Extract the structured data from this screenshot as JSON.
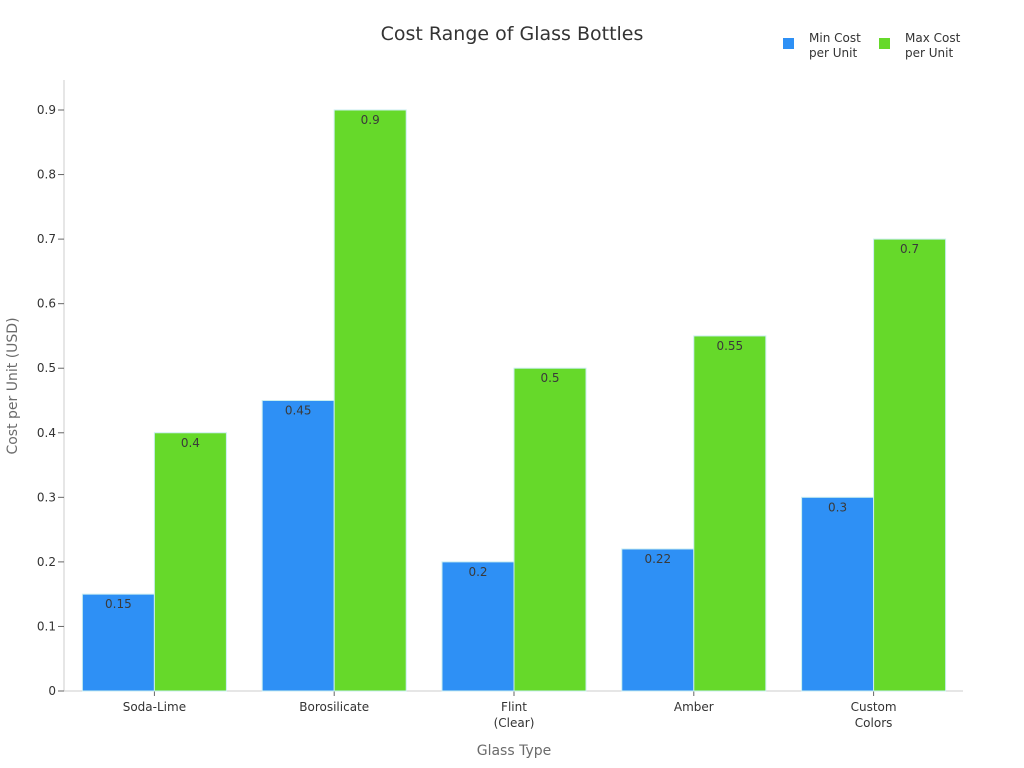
{
  "chart_data": {
    "type": "bar",
    "title": "Cost Range of Glass Bottles",
    "xlabel": "Glass Type",
    "ylabel": "Cost per Unit (USD)",
    "ylim": [
      0,
      0.9
    ],
    "yticks": [
      "0",
      "0.1",
      "0.2",
      "0.3",
      "0.4",
      "0.5",
      "0.6",
      "0.7",
      "0.8",
      "0.9"
    ],
    "ytick_values": [
      0,
      0.1,
      0.2,
      0.3,
      0.4,
      0.5,
      0.6,
      0.7,
      0.8,
      0.9
    ],
    "categories": [
      [
        "Soda-Lime"
      ],
      [
        "Borosilicate"
      ],
      [
        "Flint",
        "(Clear)"
      ],
      [
        "Amber"
      ],
      [
        "Custom",
        "Colors"
      ]
    ],
    "series": [
      {
        "name": [
          "Min Cost",
          "per Unit"
        ],
        "color": "#2e90f5",
        "values": [
          0.15,
          0.45,
          0.2,
          0.22,
          0.3
        ],
        "labels": [
          "0.15",
          "0.45",
          "0.2",
          "0.22",
          "0.3"
        ]
      },
      {
        "name": [
          "Max Cost",
          "per Unit"
        ],
        "color": "#66d92a",
        "values": [
          0.4,
          0.9,
          0.5,
          0.55,
          0.7
        ],
        "labels": [
          "0.4",
          "0.9",
          "0.5",
          "0.55",
          "0.7"
        ]
      }
    ],
    "legend": "top-right",
    "grid": false
  }
}
